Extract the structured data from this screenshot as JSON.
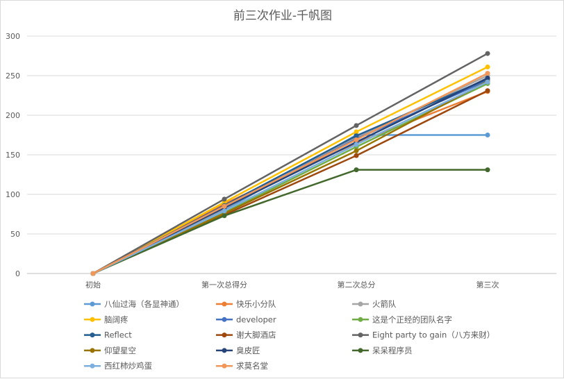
{
  "chart_data": {
    "type": "line",
    "title": "前三次作业-千帆图",
    "categories": [
      "初始",
      "第一次总得分",
      "第二次总分",
      "第三次"
    ],
    "ylim": [
      0,
      300
    ],
    "yticks": [
      0,
      50,
      100,
      150,
      200,
      250,
      300
    ],
    "grid": true,
    "legend_position": "bottom",
    "series": [
      {
        "name": "八仙过海（各显神通）",
        "color": "#5b9bd5",
        "values": [
          0,
          80,
          175,
          175
        ]
      },
      {
        "name": "快乐小分队",
        "color": "#ed7d31",
        "values": [
          0,
          88,
          165,
          230
        ]
      },
      {
        "name": "火箭队",
        "color": "#a5a5a5",
        "values": [
          0,
          82,
          172,
          250
        ]
      },
      {
        "name": "脑阔疼",
        "color": "#ffc000",
        "values": [
          0,
          90,
          179,
          261
        ]
      },
      {
        "name": "developer",
        "color": "#4472c4",
        "values": [
          0,
          84,
          170,
          244
        ]
      },
      {
        "name": "这是个正经的团队名字",
        "color": "#70ad47",
        "values": [
          0,
          77,
          160,
          240
        ]
      },
      {
        "name": "Reflect",
        "color": "#255e91",
        "values": [
          0,
          86,
          174,
          246
        ]
      },
      {
        "name": "谢大脚酒店",
        "color": "#9e480e",
        "values": [
          0,
          74,
          149,
          231
        ]
      },
      {
        "name": "Eight party to gain（八方来财）",
        "color": "#636363",
        "values": [
          0,
          94,
          187,
          278
        ]
      },
      {
        "name": "仰望星空",
        "color": "#997300",
        "values": [
          0,
          76,
          155,
          243
        ]
      },
      {
        "name": "臭皮匠",
        "color": "#264478",
        "values": [
          0,
          83,
          166,
          247
        ]
      },
      {
        "name": "呆呆程序员",
        "color": "#43682b",
        "values": [
          0,
          73,
          131,
          131
        ]
      },
      {
        "name": "西红柿炒鸡蛋",
        "color": "#7cafdd",
        "values": [
          0,
          79,
          163,
          242
        ]
      },
      {
        "name": "求莫名堂",
        "color": "#f1975a",
        "values": [
          0,
          85,
          169,
          253
        ]
      }
    ]
  }
}
